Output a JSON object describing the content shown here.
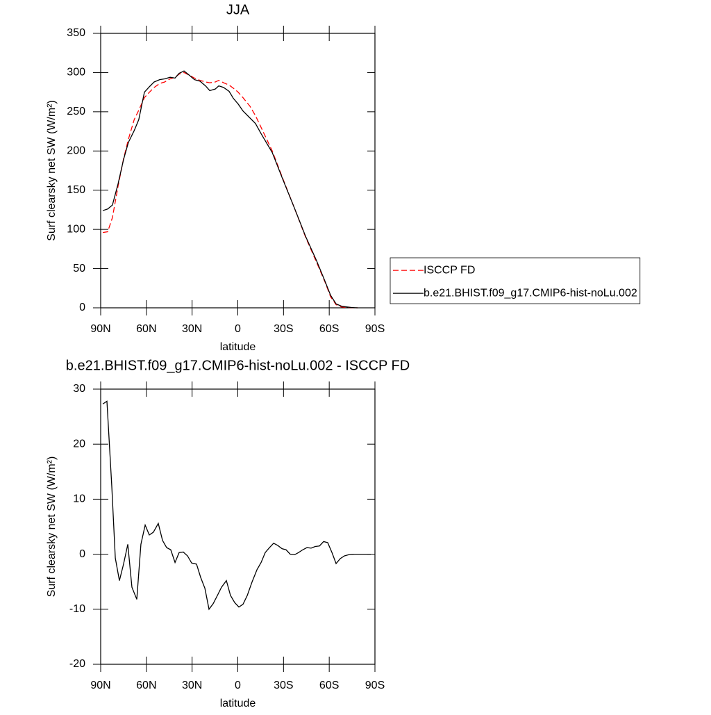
{
  "chart_data": [
    {
      "type": "line",
      "title": "JJA",
      "x_label": "latitude",
      "y_label": "Surf clearsky net SW (W/m²)",
      "x": [
        88.6,
        85.4,
        82.3,
        78.6,
        75,
        71.8,
        68,
        65,
        61.3,
        58,
        54.9,
        51.3,
        48,
        44.4,
        41.2,
        38.5,
        35.3,
        32.1,
        28.5,
        24.8,
        21.2,
        18.4,
        14.8,
        12.5,
        9.3,
        5.7,
        2.9,
        -0.2,
        -3.4,
        -8,
        -11.6,
        -15.3,
        -22.6,
        -29.9,
        -37.2,
        -44.5,
        -51.7,
        -57.2,
        -60.9,
        -64.5,
        -68.2,
        -74.1,
        -78.6
      ],
      "series": [
        {
          "name": "ISCCP FD",
          "color": "#ff0000",
          "line_style": "dashed",
          "values": [
            96,
            97,
            115,
            155,
            190,
            215,
            240,
            252,
            268,
            275,
            281,
            286,
            288,
            292,
            294,
            298,
            300,
            297,
            293,
            290,
            288,
            287,
            288,
            290,
            287,
            284,
            280,
            275,
            268,
            257,
            245,
            230,
            200,
            163,
            127,
            90,
            58,
            33,
            14,
            4,
            1,
            0.3,
            0
          ]
        },
        {
          "name": "b.e21.BHIST.f09_g17.CMIP6-hist-noLu.002",
          "color": "#000000",
          "line_style": "solid",
          "values": [
            124,
            126,
            131,
            158,
            189,
            211,
            226,
            240,
            275,
            282,
            288,
            291,
            292,
            294,
            293,
            299,
            302,
            297,
            291,
            289,
            283,
            277,
            279,
            283,
            281,
            276,
            267,
            260,
            251,
            242,
            235,
            222,
            198,
            162,
            127,
            91,
            60,
            34,
            16,
            5,
            2,
            0.5,
            0
          ]
        }
      ],
      "xlim": [
        90,
        -90
      ],
      "xticks": [
        {
          "value": 90,
          "label": "90N"
        },
        {
          "value": 60,
          "label": "60N"
        },
        {
          "value": 30,
          "label": "30N"
        },
        0,
        {
          "value": -30,
          "label": "30S"
        },
        {
          "value": -60,
          "label": "60S"
        },
        {
          "value": -90,
          "label": "90S"
        }
      ],
      "ylim": [
        0,
        350
      ],
      "yticks": [
        0,
        50,
        100,
        150,
        200,
        250,
        300,
        350
      ],
      "legend_position": "right"
    },
    {
      "type": "line",
      "title": "b.e21.BHIST.f09_g17.CMIP6-hist-noLu.002 - ISCCP FD",
      "x_label": "latitude",
      "y_label": "Surf clearsky net SW (W/m²)",
      "x": [
        88.6,
        85.9,
        82.7,
        80.4,
        77.7,
        75,
        72.2,
        69.5,
        66.3,
        63.6,
        60.8,
        58.1,
        55.4,
        52.2,
        49.4,
        46.7,
        44,
        41.2,
        38.5,
        35.8,
        33,
        30.3,
        27.1,
        24.4,
        21.6,
        18.9,
        16.2,
        13.4,
        10.7,
        7.5,
        4.8,
        2,
        -0.7,
        -3.4,
        -6.2,
        -9.4,
        -12.6,
        -15.3,
        -18,
        -20.8,
        -23.5,
        -26.2,
        -29,
        -31.7,
        -34.4,
        -37.2,
        -39.9,
        -42.6,
        -45.4,
        -48.1,
        -50.8,
        -53.6,
        -56.3,
        -59,
        -61.8,
        -64.5,
        -67.2,
        -70,
        -72.7,
        -76.4,
        -80.9,
        -87.3
      ],
      "values": [
        27.3,
        27.8,
        12.3,
        -0.7,
        -4.8,
        -1.8,
        1.8,
        -6,
        -8.2,
        1.8,
        5.3,
        3.5,
        4,
        5.6,
        2.5,
        1.2,
        0.8,
        -1.5,
        0.3,
        0.4,
        -0.3,
        -1.6,
        -1.8,
        -4.2,
        -6.2,
        -10,
        -9,
        -7.5,
        -6,
        -4.8,
        -7.5,
        -8.8,
        -9.6,
        -9.1,
        -7.5,
        -5,
        -2.8,
        -1.5,
        0.3,
        1.2,
        2,
        1.6,
        1,
        0.8,
        0,
        -0.1,
        0.3,
        0.8,
        1.2,
        1.1,
        1.4,
        1.5,
        2.3,
        2.1,
        0.3,
        -1.7,
        -0.8,
        -0.3,
        -0.1,
        0,
        0,
        0
      ],
      "color": "#000000",
      "xlim": [
        90,
        -90
      ],
      "xticks": [
        {
          "value": 90,
          "label": "90N"
        },
        {
          "value": 60,
          "label": "60N"
        },
        {
          "value": 30,
          "label": "30N"
        },
        0,
        {
          "value": -30,
          "label": "30S"
        },
        {
          "value": -60,
          "label": "60S"
        },
        {
          "value": -90,
          "label": "90S"
        }
      ],
      "ylim": [
        -20,
        30
      ],
      "yticks": [
        -20,
        -10,
        0,
        10,
        20,
        30
      ]
    }
  ]
}
